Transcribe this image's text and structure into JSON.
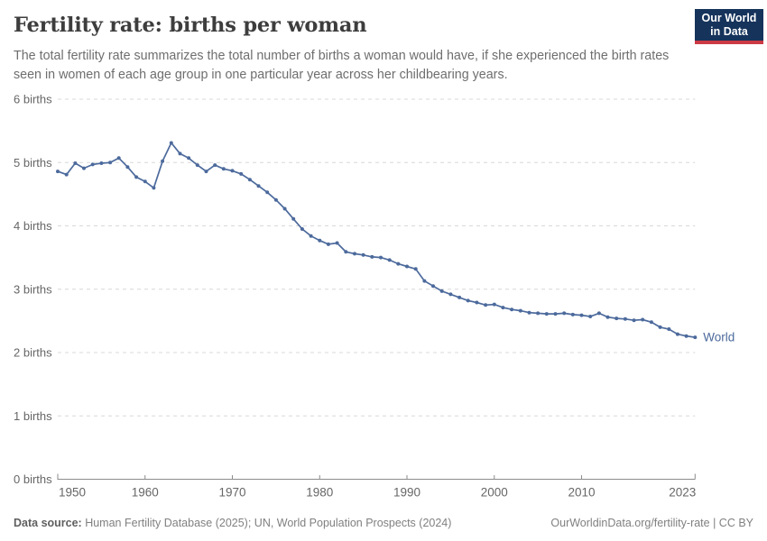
{
  "header": {
    "title": "Fertility rate: births per woman",
    "subtitle": "The total fertility rate summarizes the total number of births a woman would have, if she experienced the birth rates seen in women of each age group in one particular year across her childbearing years."
  },
  "logo": {
    "line1": "Our World",
    "line2": "in Data",
    "bg_color": "#16335B",
    "accent_color": "#cc3a45"
  },
  "chart_data": {
    "type": "line",
    "title": "Fertility rate: births per woman",
    "xlabel": "",
    "ylabel": "births",
    "xlim": [
      1950,
      2023
    ],
    "ylim": [
      0,
      6
    ],
    "grid": "horizontal-dashed",
    "legend_position": "end-of-line-label",
    "y_tick_labels": [
      "0 births",
      "1 births",
      "2 births",
      "3 births",
      "4 births",
      "5 births",
      "6 births"
    ],
    "x_tick_labels": [
      "1950",
      "1960",
      "1970",
      "1980",
      "1990",
      "2000",
      "2010",
      "2023"
    ],
    "x": [
      1950,
      1951,
      1952,
      1953,
      1954,
      1955,
      1956,
      1957,
      1958,
      1959,
      1960,
      1961,
      1962,
      1963,
      1964,
      1965,
      1966,
      1967,
      1968,
      1969,
      1970,
      1971,
      1972,
      1973,
      1974,
      1975,
      1976,
      1977,
      1978,
      1979,
      1980,
      1981,
      1982,
      1983,
      1984,
      1985,
      1986,
      1987,
      1988,
      1989,
      1990,
      1991,
      1992,
      1993,
      1994,
      1995,
      1996,
      1997,
      1998,
      1999,
      2000,
      2001,
      2002,
      2003,
      2004,
      2005,
      2006,
      2007,
      2008,
      2009,
      2010,
      2011,
      2012,
      2013,
      2014,
      2015,
      2016,
      2017,
      2018,
      2019,
      2020,
      2021,
      2022,
      2023
    ],
    "series": [
      {
        "name": "World",
        "color": "#4C6A9C",
        "values": [
          4.86,
          4.81,
          4.99,
          4.91,
          4.97,
          4.99,
          5.0,
          5.07,
          4.93,
          4.77,
          4.7,
          4.6,
          5.02,
          5.31,
          5.14,
          5.07,
          4.96,
          4.86,
          4.96,
          4.9,
          4.87,
          4.82,
          4.73,
          4.63,
          4.53,
          4.41,
          4.27,
          4.11,
          3.95,
          3.84,
          3.77,
          3.71,
          3.73,
          3.59,
          3.56,
          3.54,
          3.51,
          3.5,
          3.46,
          3.4,
          3.36,
          3.32,
          3.13,
          3.05,
          2.97,
          2.92,
          2.87,
          2.82,
          2.79,
          2.75,
          2.76,
          2.71,
          2.68,
          2.66,
          2.63,
          2.62,
          2.61,
          2.61,
          2.62,
          2.6,
          2.59,
          2.57,
          2.62,
          2.56,
          2.54,
          2.53,
          2.51,
          2.52,
          2.48,
          2.4,
          2.37,
          2.29,
          2.26,
          2.24
        ]
      }
    ]
  },
  "footer": {
    "source_label": "Data source:",
    "source_text": " Human Fertility Database (2025); UN, World Population Prospects (2024)",
    "rights": "OurWorldinData.org/fertility-rate | CC BY"
  }
}
